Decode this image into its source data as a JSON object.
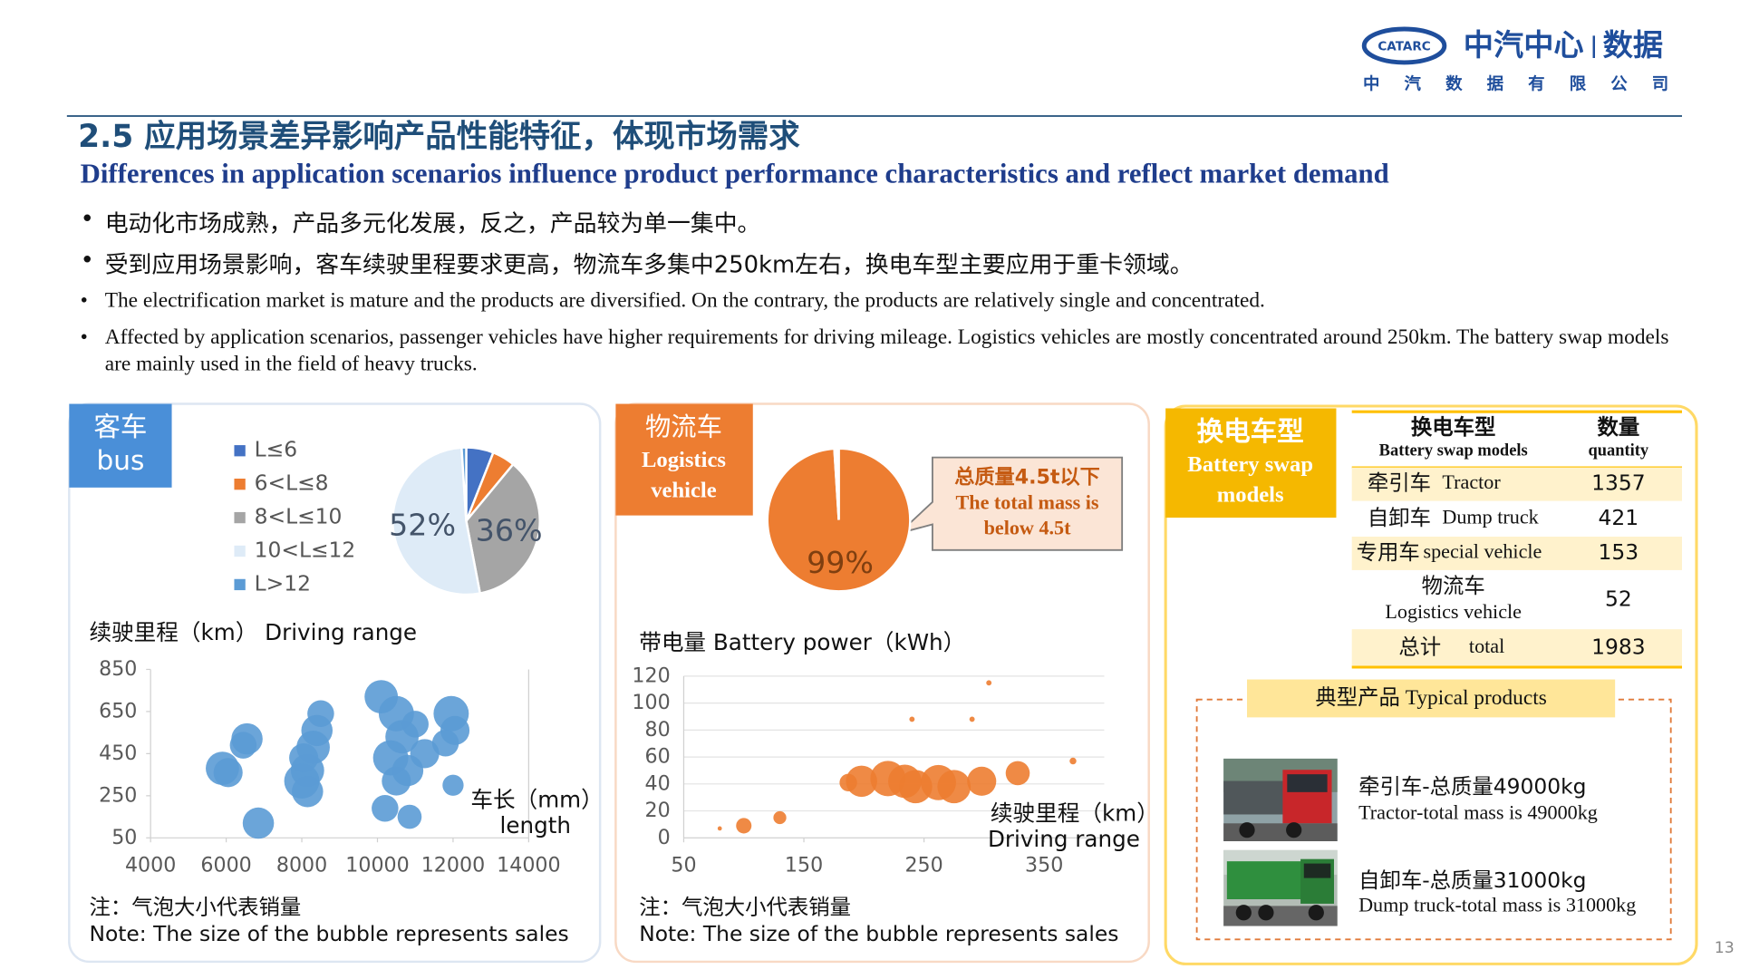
{
  "header": {
    "logo": "CATARC",
    "brand": "中汽中心",
    "brand2": "数据",
    "brand_sub": "中 汽 数 据 有 限 公 司"
  },
  "title_cn": "2.5  应用场景差异影响产品性能特征，体现市场需求",
  "title_en": "Differences in application scenarios influence product performance characteristics and reflect market demand",
  "bullets": [
    "电动化市场成熟，产品多元化发展，反之，产品较为单一集中。",
    "受到应用场景影响，客车续驶里程要求更高，物流车多集中250km左右，换电车型主要应用于重卡领域。",
    "The electrification market is mature and the products are diversified. On the contrary, the products are relatively single and concentrated.",
    "Affected by application scenarios, passenger vehicles have higher requirements for driving mileage. Logistics vehicles are mostly concentrated around 250km. The battery swap models are mainly used in the field of heavy trucks."
  ],
  "panels": [
    {
      "tag": "客车",
      "tag_en": "bus"
    },
    {
      "tag": "物流车",
      "tag_en": "Logistics",
      "tag_en2": "vehicle"
    },
    {
      "tag": "换电车型",
      "tag_en": "Battery swap",
      "tag_en2": "models"
    }
  ],
  "callout": {
    "cn": "总质量4.5t以下",
    "en1": "The total mass is",
    "en2": "below 4.5t"
  },
  "chart_data": [
    {
      "type": "pie",
      "categories": [
        "L≤6",
        "6<L≤8",
        "8<L≤10",
        "10<L≤12",
        "L>12"
      ],
      "values": [
        6,
        5,
        36,
        52,
        1
      ],
      "value_labels": [
        null,
        null,
        "36%",
        "52%",
        null
      ],
      "colors": [
        "#4472c4",
        "#ed7d31",
        "#a5a5a5",
        "#deebf7",
        "#5b9bd5"
      ],
      "legend": "left"
    },
    {
      "type": "scatter",
      "y_label": "续驶里程（km）  Driving range",
      "x_label": "车长（mm）",
      "x_label_en": "length",
      "x": [
        5900,
        6050,
        6550,
        6450,
        6850,
        8000,
        8150,
        8300,
        8400,
        8500,
        8150,
        8050,
        10200,
        10350,
        10500,
        10650,
        10800,
        11000,
        10500,
        10850,
        11950,
        12050,
        11800,
        12000,
        10100,
        11250
      ],
      "values": [
        380,
        360,
        520,
        490,
        120,
        320,
        370,
        480,
        560,
        640,
        270,
        430,
        190,
        430,
        640,
        530,
        370,
        590,
        320,
        150,
        640,
        560,
        500,
        300,
        720,
        450
      ],
      "sizes": [
        8,
        6,
        7,
        5,
        7,
        9,
        8,
        8,
        7,
        5,
        7,
        6,
        5,
        9,
        9,
        8,
        7,
        5,
        6,
        4,
        9,
        6,
        5,
        3,
        8,
        6
      ],
      "color": "#5b9bd5",
      "xlim": [
        4000,
        14000
      ],
      "ylim": [
        50,
        850
      ],
      "xticks": [
        4000,
        6000,
        8000,
        10000,
        12000,
        14000
      ],
      "yticks": [
        50,
        250,
        450,
        650,
        850
      ],
      "grid": false,
      "note_cn": "注：气泡大小代表销量",
      "note_en": "Note: The size of the bubble represents sales"
    },
    {
      "type": "pie",
      "categories": [
        null,
        null
      ],
      "values": [
        99,
        1
      ],
      "value_labels": [
        "99%",
        null
      ],
      "colors": [
        "#ed7d31",
        "#ffffff"
      ]
    },
    {
      "type": "scatter",
      "y_label": "带电量  Battery power（kWh）",
      "x_label": "续驶里程（km）",
      "x_label_en": "Driving range",
      "x": [
        100,
        130,
        187,
        198,
        220,
        234,
        243,
        262,
        275,
        298,
        328,
        240,
        290,
        304,
        374,
        80
      ],
      "values": [
        9,
        15,
        41,
        42,
        44,
        42,
        38,
        41,
        38,
        42,
        48,
        88,
        88,
        115,
        57,
        7
      ],
      "sizes": [
        1.5,
        1,
        2,
        7,
        9,
        8,
        8,
        9,
        8,
        6,
        4,
        0.1,
        0.1,
        0.1,
        0.2,
        0.05
      ],
      "color": "#ed7d31",
      "xlim": [
        50,
        400
      ],
      "ylim": [
        0,
        120
      ],
      "xticks": [
        50,
        150,
        250,
        350
      ],
      "yticks": [
        0,
        20,
        40,
        60,
        80,
        100,
        120
      ],
      "grid": true,
      "note_cn": "注：气泡大小代表销量",
      "note_en": "Note: The size of the bubble represents sales"
    }
  ],
  "table": {
    "header": [
      [
        "换电车型",
        "Battery swap models"
      ],
      [
        "数量",
        "quantity"
      ]
    ],
    "rows": [
      [
        "牵引车",
        "Tractor",
        1357
      ],
      [
        "自卸车",
        "Dump truck",
        421
      ],
      [
        "专用车",
        "special vehicle",
        153
      ],
      [
        "物流车",
        "Logistics vehicle",
        52
      ],
      [
        "总计",
        "total",
        1983
      ]
    ]
  },
  "typical": {
    "title": "典型产品  Typical products",
    "items": [
      {
        "cn": "牵引车-总质量49000kg",
        "en": "Tractor-total mass is 49000kg"
      },
      {
        "cn": "自卸车-总质量31000kg",
        "en": "Dump truck-total mass is 31000kg"
      }
    ]
  },
  "page_number": 13
}
